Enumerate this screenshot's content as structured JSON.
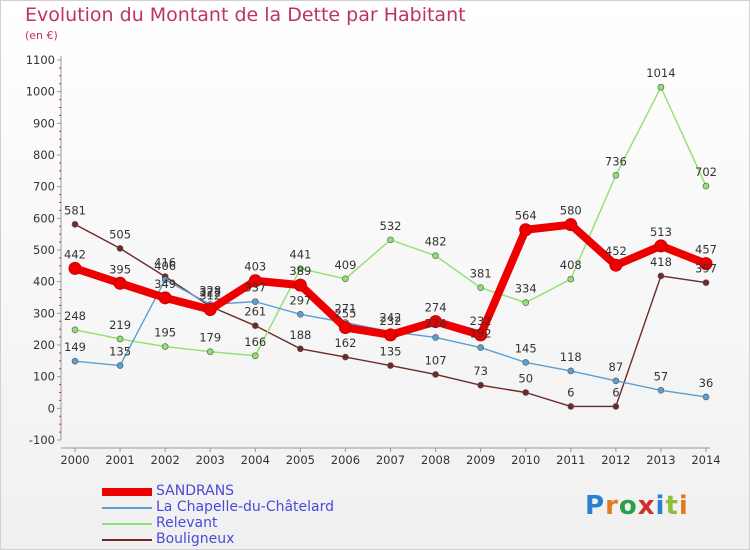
{
  "title": "Evolution du Montant de la Dette par Habitant",
  "unit_label": "(en €)",
  "logo_text": "Proxiti",
  "chart_data": {
    "type": "line",
    "title": "Evolution du Montant de la Dette par Habitant",
    "ylabel": "(en €)",
    "xlabel": "",
    "x": [
      "2000",
      "2001",
      "2002",
      "2003",
      "2004",
      "2005",
      "2006",
      "2007",
      "2008",
      "2009",
      "2010",
      "2011",
      "2012",
      "2013",
      "2014"
    ],
    "ylim": [
      -100,
      1100
    ],
    "yticks": [
      -100,
      0,
      100,
      200,
      300,
      400,
      500,
      600,
      700,
      800,
      900,
      1000,
      1100
    ],
    "grid": false,
    "legend_position": "bottom-left",
    "series": [
      {
        "name": "SANDRANS",
        "color": "#ee0000",
        "values": [
          442,
          395,
          349,
          312,
          403,
          389,
          255,
          232,
          274,
          232,
          564,
          580,
          452,
          513,
          457
        ]
      },
      {
        "name": "La Chapelle-du-Châtelard",
        "color": "#5a9fd4",
        "values": [
          149,
          135,
          406,
          328,
          337,
          297,
          271,
          242,
          224,
          192,
          145,
          118,
          87,
          57,
          36
        ]
      },
      {
        "name": "Relevant",
        "color": "#90e070",
        "values": [
          248,
          219,
          195,
          179,
          166,
          441,
          409,
          532,
          482,
          381,
          334,
          408,
          736,
          1014,
          702
        ]
      },
      {
        "name": "Bouligneux",
        "color": "#702828",
        "values": [
          581,
          505,
          416,
          322,
          261,
          188,
          162,
          135,
          107,
          73,
          50,
          6,
          6,
          418,
          397
        ]
      }
    ]
  }
}
